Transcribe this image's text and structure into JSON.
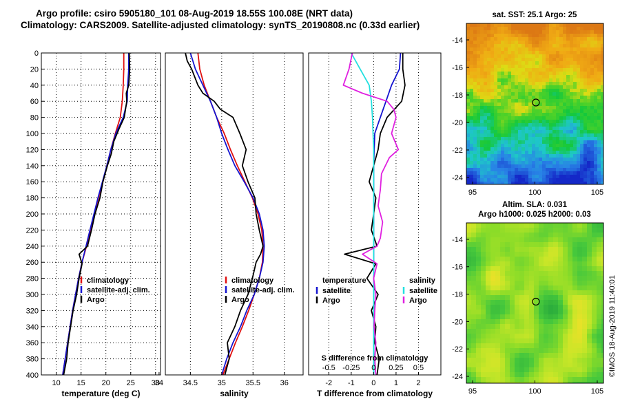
{
  "title": {
    "line1": "Argo profile: csiro 5905180_101 08-Aug-2019 18.55S 100.08E (NRT data)",
    "line2": "Climatology: CARS2009. Satellite-adjusted climatology: synTS_20190808.nc (0.33d earlier)"
  },
  "stamp": "©IMOS 18-Aug-2019 11:40:01",
  "colors": {
    "climatology": "#e01010",
    "satellite": "#1414d0",
    "argo": "#000000",
    "salinity_sat": "#22e0e0",
    "salinity_argo": "#e020e0"
  },
  "chart_data": [
    {
      "type": "line",
      "id": "temperature",
      "xlabel": "temperature (deg C)",
      "ylabel": "",
      "xlim": [
        7,
        31
      ],
      "ylim": [
        400,
        0
      ],
      "grid": true,
      "xticks": [
        10,
        15,
        20,
        25,
        30
      ],
      "yticks": [
        0,
        20,
        40,
        60,
        80,
        100,
        120,
        140,
        160,
        180,
        200,
        220,
        240,
        260,
        280,
        300,
        320,
        340,
        360,
        380,
        400
      ],
      "legend": [
        "climatology",
        "satellite-adj. clim.",
        "Argo"
      ],
      "series": [
        {
          "name": "climatology",
          "color": "#e01010",
          "points": [
            [
              23.6,
              0
            ],
            [
              23.6,
              20
            ],
            [
              23.5,
              40
            ],
            [
              23.3,
              60
            ],
            [
              22.9,
              80
            ],
            [
              21.9,
              100
            ],
            [
              21.0,
              120
            ],
            [
              20.2,
              140
            ],
            [
              19.4,
              160
            ],
            [
              18.5,
              180
            ],
            [
              17.7,
              200
            ],
            [
              16.9,
              220
            ],
            [
              16.1,
              240
            ],
            [
              15.2,
              260
            ],
            [
              14.5,
              280
            ],
            [
              13.9,
              300
            ],
            [
              13.3,
              320
            ],
            [
              12.8,
              340
            ],
            [
              12.3,
              360
            ],
            [
              11.8,
              380
            ],
            [
              11.3,
              400
            ]
          ]
        },
        {
          "name": "satellite-adj. clim.",
          "color": "#1414d0",
          "points": [
            [
              24.6,
              0
            ],
            [
              24.6,
              20
            ],
            [
              24.4,
              40
            ],
            [
              24.3,
              60
            ],
            [
              23.5,
              80
            ],
            [
              22.0,
              100
            ],
            [
              21.0,
              120
            ],
            [
              20.2,
              140
            ],
            [
              19.3,
              160
            ],
            [
              18.4,
              180
            ],
            [
              17.6,
              200
            ],
            [
              16.8,
              220
            ],
            [
              16.0,
              240
            ],
            [
              15.2,
              260
            ],
            [
              14.5,
              280
            ],
            [
              13.9,
              300
            ],
            [
              13.3,
              320
            ],
            [
              12.8,
              340
            ],
            [
              12.3,
              360
            ],
            [
              11.8,
              380
            ],
            [
              11.3,
              400
            ]
          ]
        },
        {
          "name": "Argo",
          "color": "#000000",
          "points": [
            [
              24.7,
              0
            ],
            [
              24.8,
              20
            ],
            [
              24.6,
              40
            ],
            [
              24.1,
              50
            ],
            [
              24.2,
              60
            ],
            [
              23.7,
              80
            ],
            [
              22.6,
              95
            ],
            [
              21.6,
              110
            ],
            [
              21.1,
              125
            ],
            [
              20.3,
              140
            ],
            [
              19.4,
              160
            ],
            [
              18.8,
              180
            ],
            [
              17.8,
              200
            ],
            [
              17.1,
              220
            ],
            [
              16.3,
              240
            ],
            [
              14.6,
              250
            ],
            [
              15.2,
              262
            ],
            [
              14.6,
              280
            ],
            [
              14.1,
              300
            ],
            [
              13.4,
              320
            ],
            [
              12.9,
              340
            ],
            [
              12.4,
              360
            ],
            [
              12.1,
              380
            ],
            [
              11.5,
              400
            ]
          ]
        }
      ]
    },
    {
      "type": "line",
      "id": "salinity",
      "xlabel": "salinity",
      "ylabel": "",
      "xlim": [
        34.1,
        36.3
      ],
      "ylim": [
        400,
        0
      ],
      "grid": true,
      "xticks": [
        34,
        34.5,
        35,
        35.5,
        36
      ],
      "xticklabels": [
        "34",
        "34.5",
        "35",
        "35.5",
        "36"
      ],
      "legend": [
        "climatology",
        "satellite-adj. clim.",
        "Argo"
      ],
      "series": [
        {
          "name": "climatology",
          "color": "#e01010",
          "points": [
            [
              34.62,
              0
            ],
            [
              34.65,
              20
            ],
            [
              34.72,
              40
            ],
            [
              34.82,
              60
            ],
            [
              34.92,
              80
            ],
            [
              35.04,
              100
            ],
            [
              35.14,
              120
            ],
            [
              35.25,
              140
            ],
            [
              35.37,
              160
            ],
            [
              35.49,
              180
            ],
            [
              35.58,
              200
            ],
            [
              35.64,
              220
            ],
            [
              35.66,
              240
            ],
            [
              35.65,
              260
            ],
            [
              35.6,
              280
            ],
            [
              35.52,
              300
            ],
            [
              35.43,
              320
            ],
            [
              35.33,
              340
            ],
            [
              35.22,
              360
            ],
            [
              35.12,
              380
            ],
            [
              35.02,
              400
            ]
          ]
        },
        {
          "name": "satellite-adj. clim.",
          "color": "#1414d0",
          "points": [
            [
              34.5,
              0
            ],
            [
              34.58,
              20
            ],
            [
              34.7,
              40
            ],
            [
              34.82,
              60
            ],
            [
              34.92,
              80
            ],
            [
              35.0,
              100
            ],
            [
              35.1,
              120
            ],
            [
              35.21,
              140
            ],
            [
              35.36,
              160
            ],
            [
              35.5,
              180
            ],
            [
              35.6,
              200
            ],
            [
              35.66,
              220
            ],
            [
              35.68,
              240
            ],
            [
              35.66,
              260
            ],
            [
              35.6,
              280
            ],
            [
              35.52,
              300
            ],
            [
              35.4,
              320
            ],
            [
              35.3,
              340
            ],
            [
              35.18,
              360
            ],
            [
              35.08,
              380
            ],
            [
              35.0,
              400
            ]
          ]
        },
        {
          "name": "Argo",
          "color": "#000000",
          "points": [
            [
              34.42,
              0
            ],
            [
              34.45,
              10
            ],
            [
              34.52,
              20
            ],
            [
              34.62,
              40
            ],
            [
              34.7,
              50
            ],
            [
              34.88,
              60
            ],
            [
              34.98,
              70
            ],
            [
              35.18,
              80
            ],
            [
              35.29,
              100
            ],
            [
              35.39,
              120
            ],
            [
              35.33,
              140
            ],
            [
              35.42,
              160
            ],
            [
              35.53,
              180
            ],
            [
              35.55,
              200
            ],
            [
              35.6,
              220
            ],
            [
              35.66,
              240
            ],
            [
              35.62,
              250
            ],
            [
              35.55,
              260
            ],
            [
              35.49,
              280
            ],
            [
              35.42,
              300
            ],
            [
              35.3,
              320
            ],
            [
              35.21,
              340
            ],
            [
              35.09,
              360
            ],
            [
              35.12,
              380
            ],
            [
              35.05,
              400
            ]
          ]
        }
      ]
    },
    {
      "type": "line",
      "id": "difference",
      "xlabel": "T difference from climatology",
      "xlabel_top": "S difference from climatology",
      "xlim": [
        -2.9,
        3.0
      ],
      "ylim": [
        400,
        0
      ],
      "grid": true,
      "xticks": [
        -2,
        -1,
        0,
        1,
        2
      ],
      "xticklabels": [
        "-2",
        "-1",
        "0",
        "1",
        "2"
      ],
      "xticks_top": [
        -0.5,
        -0.25,
        0,
        0.25,
        0.5
      ],
      "xticklabels_top": [
        "-0.5",
        "-0.25",
        "0",
        "0.25",
        "0.5"
      ],
      "legend_temperature": [
        "temperature",
        "satellite",
        "Argo"
      ],
      "legend_salinity": [
        "salinity",
        "satellite",
        "Argo"
      ],
      "series": [
        {
          "name": "temperature satellite",
          "color": "#1414d0",
          "points": [
            [
              1.2,
              0
            ],
            [
              1.15,
              20
            ],
            [
              0.8,
              40
            ],
            [
              0.55,
              60
            ],
            [
              0.3,
              80
            ],
            [
              0.05,
              100
            ],
            [
              0.0,
              140
            ],
            [
              0.0,
              200
            ],
            [
              0.0,
              300
            ],
            [
              0.0,
              400
            ]
          ]
        },
        {
          "name": "temperature Argo",
          "color": "#000000",
          "points": [
            [
              1.3,
              0
            ],
            [
              1.3,
              20
            ],
            [
              1.4,
              40
            ],
            [
              1.25,
              60
            ],
            [
              0.6,
              80
            ],
            [
              0.3,
              100
            ],
            [
              0.2,
              120
            ],
            [
              0.0,
              140
            ],
            [
              -0.2,
              160
            ],
            [
              0.1,
              180
            ],
            [
              0.0,
              200
            ],
            [
              -0.1,
              220
            ],
            [
              0.15,
              240
            ],
            [
              -1.3,
              250
            ],
            [
              0.1,
              262
            ],
            [
              -0.3,
              280
            ],
            [
              0.2,
              300
            ],
            [
              -0.1,
              320
            ],
            [
              0.1,
              340
            ],
            [
              0.05,
              360
            ],
            [
              0.25,
              380
            ],
            [
              0.15,
              400
            ]
          ]
        },
        {
          "name": "salinity satellite",
          "color": "#22e0e0",
          "points": [
            [
              -1.0,
              0
            ],
            [
              -0.6,
              20
            ],
            [
              -0.2,
              40
            ],
            [
              -0.1,
              60
            ],
            [
              -0.05,
              80
            ],
            [
              0.0,
              120
            ],
            [
              0.0,
              200
            ],
            [
              0.0,
              300
            ],
            [
              0.0,
              400
            ]
          ]
        },
        {
          "name": "salinity Argo",
          "color": "#e020e0",
          "points": [
            [
              -0.95,
              0
            ],
            [
              -1.1,
              20
            ],
            [
              -1.35,
              40
            ],
            [
              -0.5,
              50
            ],
            [
              0.6,
              60
            ],
            [
              0.9,
              70
            ],
            [
              1.0,
              80
            ],
            [
              0.8,
              100
            ],
            [
              1.1,
              120
            ],
            [
              0.7,
              130
            ],
            [
              0.35,
              150
            ],
            [
              0.3,
              170
            ],
            [
              0.2,
              190
            ],
            [
              0.4,
              210
            ],
            [
              0.3,
              230
            ],
            [
              0.15,
              240
            ],
            [
              -0.5,
              250
            ],
            [
              0.15,
              262
            ],
            [
              0.0,
              280
            ],
            [
              0.1,
              300
            ],
            [
              0.05,
              320
            ],
            [
              0.02,
              340
            ],
            [
              0.1,
              360
            ],
            [
              0.05,
              380
            ],
            [
              0.1,
              400
            ]
          ]
        }
      ]
    },
    {
      "type": "heatmap",
      "id": "sst-map",
      "title": "sat. SST: 25.1 Argo: 25",
      "xlim": [
        94.5,
        105.5
      ],
      "ylim": [
        -24.5,
        -12.8
      ],
      "xticks": [
        95,
        100,
        105
      ],
      "yticks": [
        -14,
        -16,
        -18,
        -20,
        -22,
        -24
      ],
      "marker": [
        100.08,
        -18.55
      ]
    },
    {
      "type": "heatmap",
      "id": "sla-map",
      "title": "Altim. SLA: 0.031",
      "title2": "Argo h1000: 0.025 h2000: 0.03",
      "xlim": [
        94.5,
        105.5
      ],
      "ylim": [
        -24.5,
        -12.8
      ],
      "xticks": [
        95,
        100,
        105
      ],
      "yticks": [
        -14,
        -16,
        -18,
        -20,
        -22,
        -24
      ],
      "marker": [
        100.08,
        -18.55
      ]
    }
  ]
}
